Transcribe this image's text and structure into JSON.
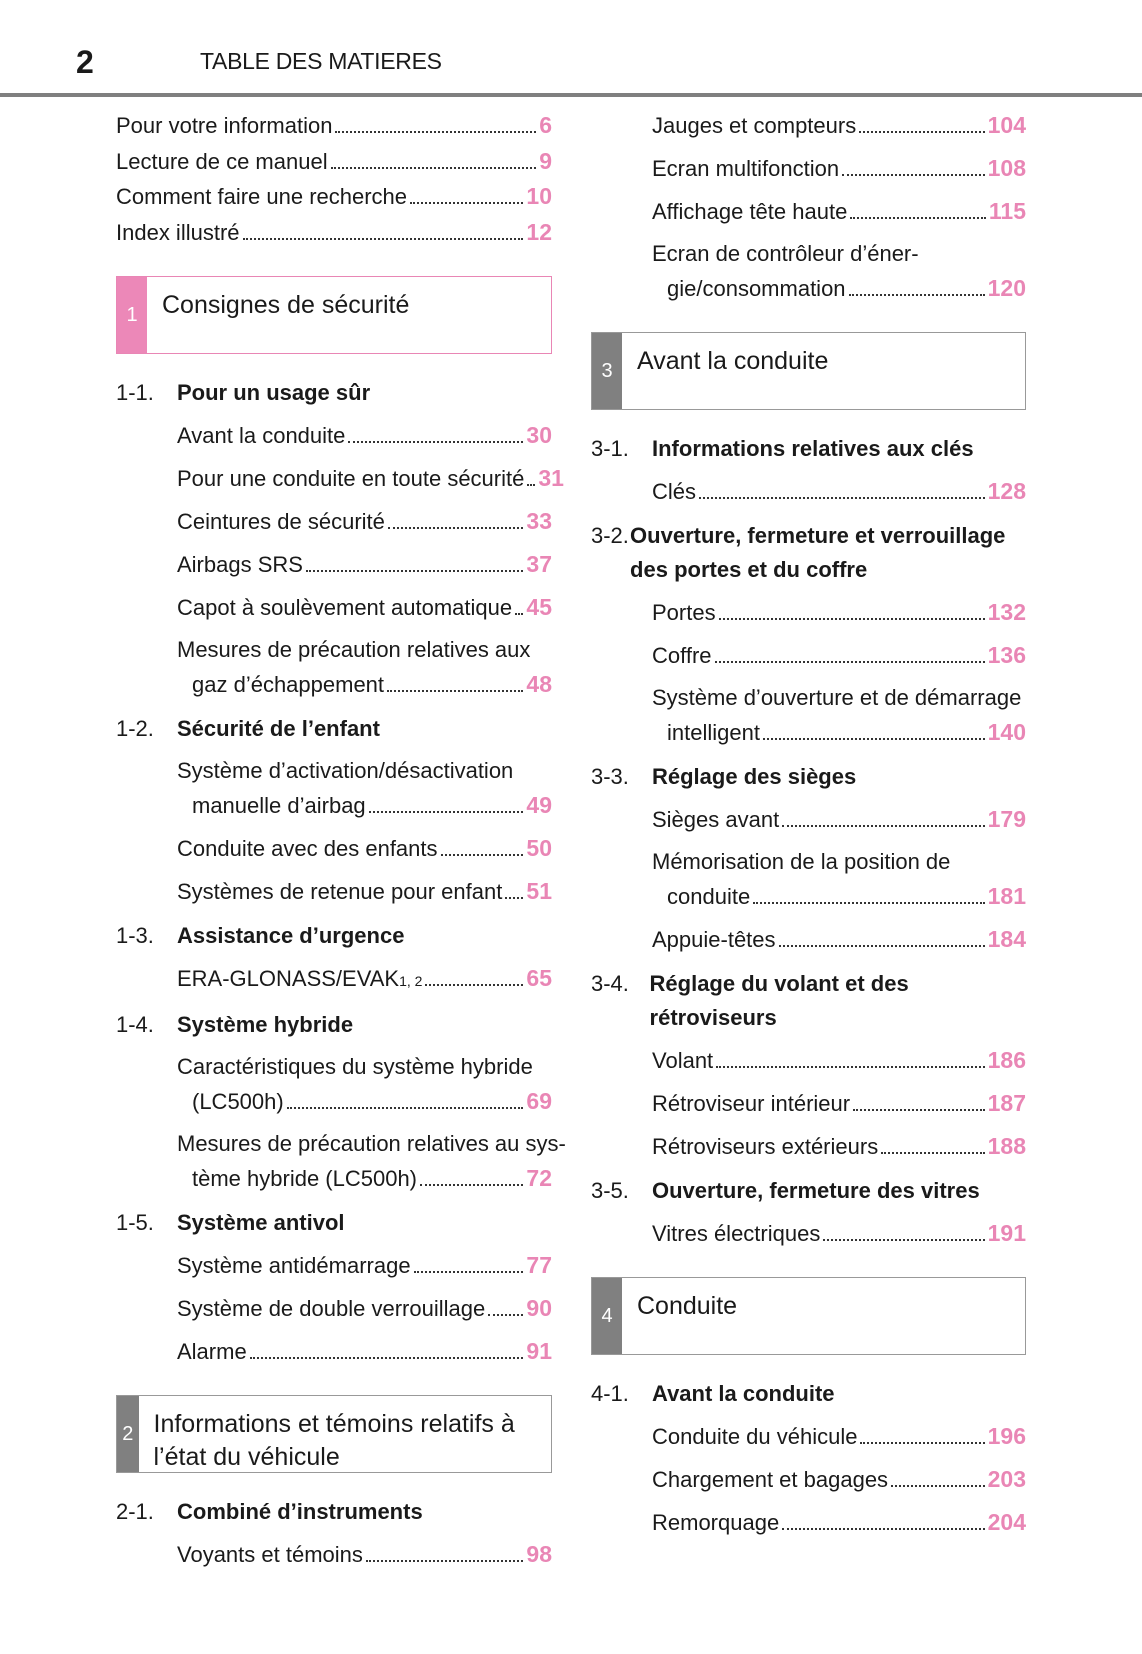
{
  "header": {
    "page_number": "2",
    "title": "TABLE DES MATIERES"
  },
  "colors": {
    "accent": "#e986b5",
    "section_gray": "#808080"
  },
  "columns": [
    {
      "entries": [
        {
          "type": "intro",
          "lines": [
            "Pour votre information"
          ],
          "page": "6"
        },
        {
          "type": "intro",
          "lines": [
            "Lecture de ce manuel"
          ],
          "page": "9"
        },
        {
          "type": "intro",
          "lines": [
            "Comment faire une recherche"
          ],
          "page": "10"
        },
        {
          "type": "intro",
          "lines": [
            "Index illustré"
          ],
          "page": "12"
        },
        {
          "type": "section",
          "number": "1",
          "title": "Consignes de sécurité",
          "style": "pink"
        },
        {
          "type": "heading",
          "number": "1-1.",
          "title": "Pour un usage sûr"
        },
        {
          "type": "item",
          "lines": [
            "Avant la conduite"
          ],
          "page": "30"
        },
        {
          "type": "item",
          "lines": [
            "Pour une conduite en toute sécurité"
          ],
          "page": "31"
        },
        {
          "type": "item",
          "lines": [
            "Ceintures de sécurité"
          ],
          "page": "33"
        },
        {
          "type": "item",
          "lines": [
            "Airbags SRS"
          ],
          "page": "37"
        },
        {
          "type": "item",
          "lines": [
            "Capot à soulèvement automatique"
          ],
          "page": "45"
        },
        {
          "type": "item",
          "lines": [
            "Mesures de précaution relatives aux",
            "gaz d’échappement"
          ],
          "page": "48"
        },
        {
          "type": "heading",
          "number": "1-2.",
          "title": "Sécurité de l’enfant"
        },
        {
          "type": "item",
          "lines": [
            "Système d’activation/désactivation",
            "manuelle d’airbag"
          ],
          "page": "49"
        },
        {
          "type": "item",
          "lines": [
            "Conduite avec des enfants"
          ],
          "page": "50"
        },
        {
          "type": "item",
          "lines": [
            "Systèmes de retenue pour enfant"
          ],
          "page": "51"
        },
        {
          "type": "heading",
          "number": "1-3.",
          "title": "Assistance d’urgence"
        },
        {
          "type": "item",
          "lines": [
            "ERA-GLONASS/EVAK"
          ],
          "sup": "1, 2",
          "page": "65"
        },
        {
          "type": "heading",
          "number": "1-4.",
          "title": "Système hybride"
        },
        {
          "type": "item",
          "lines": [
            "Caractéristiques du système hybride",
            "(LC500h)"
          ],
          "page": "69"
        },
        {
          "type": "item",
          "lines": [
            "Mesures de précaution relatives au sys-",
            "tème hybride (LC500h)"
          ],
          "page": "72"
        },
        {
          "type": "heading",
          "number": "1-5.",
          "title": "Système antivol"
        },
        {
          "type": "item",
          "lines": [
            "Système antidémarrage"
          ],
          "page": "77"
        },
        {
          "type": "item",
          "lines": [
            "Système de double verrouillage"
          ],
          "page": "90"
        },
        {
          "type": "item",
          "lines": [
            "Alarme"
          ],
          "page": "91"
        },
        {
          "type": "section",
          "number": "2",
          "title": "Informations et témoins relatifs à l’état du véhicule",
          "style": "gray"
        },
        {
          "type": "heading",
          "number": "2-1.",
          "title": "Combiné d’instruments"
        },
        {
          "type": "item",
          "lines": [
            "Voyants et témoins"
          ],
          "page": "98"
        }
      ]
    },
    {
      "entries": [
        {
          "type": "item",
          "lines": [
            "Jauges et compteurs"
          ],
          "page": "104"
        },
        {
          "type": "item",
          "lines": [
            "Ecran multifonction"
          ],
          "page": "108"
        },
        {
          "type": "item",
          "lines": [
            "Affichage tête haute"
          ],
          "page": "115"
        },
        {
          "type": "item",
          "lines": [
            "Ecran de contrôleur d’éner-",
            "gie/consommation"
          ],
          "page": "120"
        },
        {
          "type": "section",
          "number": "3",
          "title": "Avant la conduite",
          "style": "gray"
        },
        {
          "type": "heading",
          "number": "3-1.",
          "title": "Informations relatives aux clés"
        },
        {
          "type": "item",
          "lines": [
            "Clés"
          ],
          "page": "128"
        },
        {
          "type": "heading",
          "number": "3-2.",
          "title": "Ouverture, fermeture et verrouillage des portes et du coffre"
        },
        {
          "type": "item",
          "lines": [
            "Portes"
          ],
          "page": "132"
        },
        {
          "type": "item",
          "lines": [
            "Coffre"
          ],
          "page": "136"
        },
        {
          "type": "item",
          "lines": [
            "Système d’ouverture et de démarrage",
            "intelligent"
          ],
          "page": "140"
        },
        {
          "type": "heading",
          "number": "3-3.",
          "title": "Réglage des sièges"
        },
        {
          "type": "item",
          "lines": [
            "Sièges avant"
          ],
          "page": "179"
        },
        {
          "type": "item",
          "lines": [
            "Mémorisation de la position de",
            "conduite"
          ],
          "page": "181"
        },
        {
          "type": "item",
          "lines": [
            "Appuie-têtes"
          ],
          "page": "184"
        },
        {
          "type": "heading",
          "number": "3-4.",
          "title": "Réglage du volant et des rétroviseurs"
        },
        {
          "type": "item",
          "lines": [
            "Volant"
          ],
          "page": "186"
        },
        {
          "type": "item",
          "lines": [
            "Rétroviseur intérieur"
          ],
          "page": "187"
        },
        {
          "type": "item",
          "lines": [
            "Rétroviseurs extérieurs"
          ],
          "page": "188"
        },
        {
          "type": "heading",
          "number": "3-5.",
          "title": "Ouverture, fermeture des vitres"
        },
        {
          "type": "item",
          "lines": [
            "Vitres électriques"
          ],
          "page": "191"
        },
        {
          "type": "section",
          "number": "4",
          "title": "Conduite",
          "style": "gray"
        },
        {
          "type": "heading",
          "number": "4-1.",
          "title": "Avant la conduite"
        },
        {
          "type": "item",
          "lines": [
            "Conduite du véhicule"
          ],
          "page": "196"
        },
        {
          "type": "item",
          "lines": [
            "Chargement et bagages"
          ],
          "page": "203"
        },
        {
          "type": "item",
          "lines": [
            "Remorquage"
          ],
          "page": "204"
        }
      ]
    }
  ]
}
